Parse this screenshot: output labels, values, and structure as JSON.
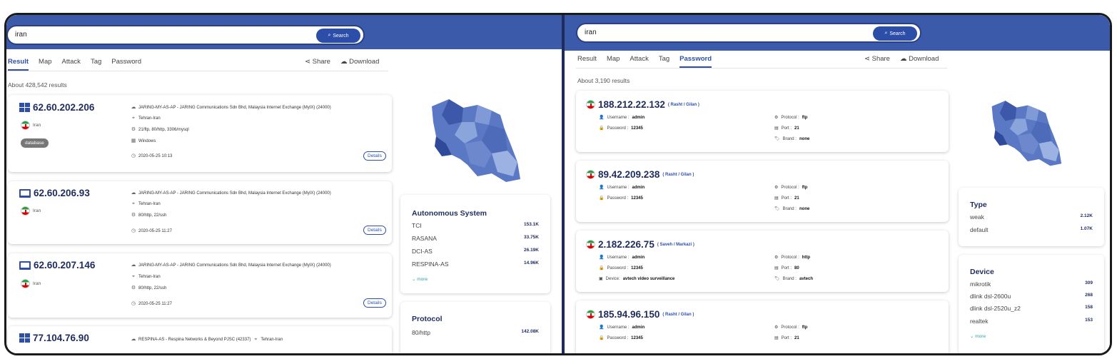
{
  "left": {
    "search": {
      "query": "iran",
      "button": "Search"
    },
    "tabs": [
      "Result",
      "Map",
      "Attack",
      "Tag",
      "Password"
    ],
    "actions": {
      "share": "Share",
      "download": "Download"
    },
    "results_count": "About 428,542 results",
    "results": [
      {
        "ip": "62.60.202.206",
        "os_icon": "windows-icon",
        "country": "Iran",
        "badge": "database",
        "org": "JARING-MY-AS-AP - JARING Communications Sdn Bhd, Malaysia Internet Exchange (MyIX) (24000)",
        "location": "Tehran-Iran",
        "ports": "21/ftp, 80/http, 3306/mysql",
        "os": "Windows",
        "time": "2020-05-25 10:13",
        "details": "Details"
      },
      {
        "ip": "62.60.206.93",
        "os_icon": "laptop-icon",
        "country": "Iran",
        "org": "JARING-MY-AS-AP - JARING Communications Sdn Bhd, Malaysia Internet Exchange (MyIX) (24000)",
        "location": "Tehran-Iran",
        "ports": "80/http, 22/ssh",
        "time": "2020-05-25 11:27",
        "details": "Details"
      },
      {
        "ip": "62.60.207.146",
        "os_icon": "laptop-icon",
        "country": "Iran",
        "org": "JARING-MY-AS-AP - JARING Communications Sdn Bhd, Malaysia Internet Exchange (MyIX) (24000)",
        "location": "Tehran-Iran",
        "ports": "80/http, 22/ssh",
        "time": "2020-05-25 11:27",
        "details": "Details"
      },
      {
        "ip": "77.104.76.90",
        "os_icon": "windows-icon",
        "org": "RESPINA-AS - Respina Networks & Beyond PJSC (42337)",
        "location": "Tehran-Iran"
      }
    ],
    "as_panel": {
      "title": "Autonomous System",
      "rows": [
        {
          "name": "TCI",
          "value": "153.1K"
        },
        {
          "name": "RASANA",
          "value": "33.75K"
        },
        {
          "name": "DCI-AS",
          "value": "26.19K"
        },
        {
          "name": "RESPINA-AS",
          "value": "14.96K"
        }
      ],
      "more": "more"
    },
    "protocol_panel": {
      "title": "Protocol",
      "rows": [
        {
          "name": "80/http",
          "value": "142.08K"
        }
      ]
    }
  },
  "right": {
    "search": {
      "query": "iran",
      "button": "Search"
    },
    "tabs": [
      "Result",
      "Map",
      "Attack",
      "Tag",
      "Password"
    ],
    "actions": {
      "share": "Share",
      "download": "Download"
    },
    "results_count": "About 3,190 results",
    "results": [
      {
        "ip": "188.212.22.132",
        "loc": "( Rasht / Gilan )",
        "username_label": "Username :",
        "username": "admin",
        "password_label": "Password :",
        "password": "12345",
        "protocol_label": "Protocol :",
        "protocol": "ftp",
        "port_label": "Port :",
        "port": "21",
        "brand_label": "Brand :",
        "brand": "none"
      },
      {
        "ip": "89.42.209.238",
        "loc": "( Rasht / Gilan )",
        "username_label": "Username :",
        "username": "admin",
        "password_label": "Password :",
        "password": "12345",
        "protocol_label": "Protocol :",
        "protocol": "ftp",
        "port_label": "Port :",
        "port": "21",
        "brand_label": "Brand :",
        "brand": "none"
      },
      {
        "ip": "2.182.226.75",
        "loc": "( Saveh / Markazi )",
        "username_label": "Username :",
        "username": "admin",
        "password_label": "Password :",
        "password": "12345",
        "device_label": "Device:",
        "device": "avtech video surveillance",
        "protocol_label": "Protocol :",
        "protocol": "http",
        "port_label": "Port :",
        "port": "80",
        "brand_label": "Brand :",
        "brand": "avtech"
      },
      {
        "ip": "185.94.96.150",
        "loc": "( Rasht / Gilan )",
        "username_label": "Username :",
        "username": "admin",
        "password_label": "Password :",
        "password": "12345",
        "protocol_label": "Protocol :",
        "protocol": "ftp",
        "port_label": "Port :",
        "port": "21"
      }
    ],
    "type_panel": {
      "title": "Type",
      "rows": [
        {
          "name": "weak",
          "value": "2.12K"
        },
        {
          "name": "default",
          "value": "1.07K"
        }
      ]
    },
    "device_panel": {
      "title": "Device",
      "rows": [
        {
          "name": "mikrotik",
          "value": "309"
        },
        {
          "name": "dlink dsl-2600u",
          "value": "268"
        },
        {
          "name": "dlink dsl-2520u_z2",
          "value": "158"
        },
        {
          "name": "realtek",
          "value": "153"
        }
      ],
      "more": "more"
    }
  },
  "colors": {
    "topbar": "#3b5baa",
    "accent": "#2d4fa7",
    "ip_text": "#1f2c5e",
    "more_link": "#2aa2a2"
  }
}
